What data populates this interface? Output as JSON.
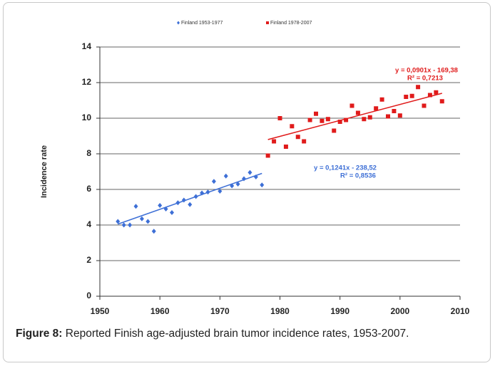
{
  "chart_data": {
    "type": "scatter",
    "ylabel": "Incidence rate",
    "xlim": [
      1950,
      2010
    ],
    "xticks": [
      1950,
      1960,
      1970,
      1980,
      1990,
      2000,
      2010
    ],
    "ylim": [
      0,
      14
    ],
    "yticks": [
      0,
      2,
      4,
      6,
      8,
      10,
      12,
      14
    ],
    "grid": true,
    "legend": "top",
    "series": [
      {
        "name": "Finland 1953-1977",
        "color": "#3d6fd6",
        "marker": "diamond",
        "x": [
          1953,
          1954,
          1955,
          1956,
          1957,
          1958,
          1959,
          1960,
          1961,
          1962,
          1963,
          1964,
          1965,
          1966,
          1967,
          1968,
          1969,
          1970,
          1971,
          1972,
          1973,
          1974,
          1975,
          1976,
          1977
        ],
        "values": [
          4.2,
          4.0,
          4.0,
          5.05,
          4.35,
          4.2,
          3.65,
          5.1,
          4.9,
          4.7,
          5.25,
          5.4,
          5.15,
          5.6,
          5.8,
          5.85,
          6.45,
          5.9,
          6.75,
          6.2,
          6.3,
          6.6,
          6.95,
          6.7,
          6.25
        ]
      },
      {
        "name": "Finland 1978-2007",
        "color": "#e01b1b",
        "marker": "square",
        "x": [
          1978,
          1979,
          1980,
          1981,
          1982,
          1983,
          1984,
          1985,
          1986,
          1987,
          1988,
          1989,
          1990,
          1991,
          1992,
          1993,
          1994,
          1995,
          1996,
          1997,
          1998,
          1999,
          2000,
          2001,
          2002,
          2003,
          2004,
          2005,
          2006,
          2007
        ],
        "values": [
          7.9,
          8.7,
          10.0,
          8.4,
          9.55,
          8.95,
          8.7,
          9.9,
          10.25,
          9.85,
          9.95,
          9.3,
          9.8,
          9.9,
          10.7,
          10.3,
          9.95,
          10.05,
          10.55,
          11.05,
          10.1,
          10.4,
          10.15,
          11.2,
          11.25,
          11.75,
          10.7,
          11.3,
          11.45,
          10.95
        ]
      }
    ],
    "trendlines": [
      {
        "color": "#3d6fd6",
        "x": [
          1953,
          1977
        ],
        "values": [
          4.05,
          6.9
        ]
      },
      {
        "color": "#e01b1b",
        "x": [
          1978,
          2007
        ],
        "values": [
          8.8,
          11.4
        ]
      }
    ],
    "annotations": [
      {
        "text": "y = 0,1241x - 238,52",
        "color": "#3d6fd6"
      },
      {
        "text": "R² = 0,8536",
        "color": "#3d6fd6"
      },
      {
        "text": "y = 0,0901x - 169,38",
        "color": "#e01b1b"
      },
      {
        "text": "R² = 0,7213",
        "color": "#e01b1b"
      }
    ]
  },
  "caption": {
    "label": "Figure 8:",
    "text": "Reported Finish age-adjusted brain tumor incidence rates, 1953-2007."
  }
}
